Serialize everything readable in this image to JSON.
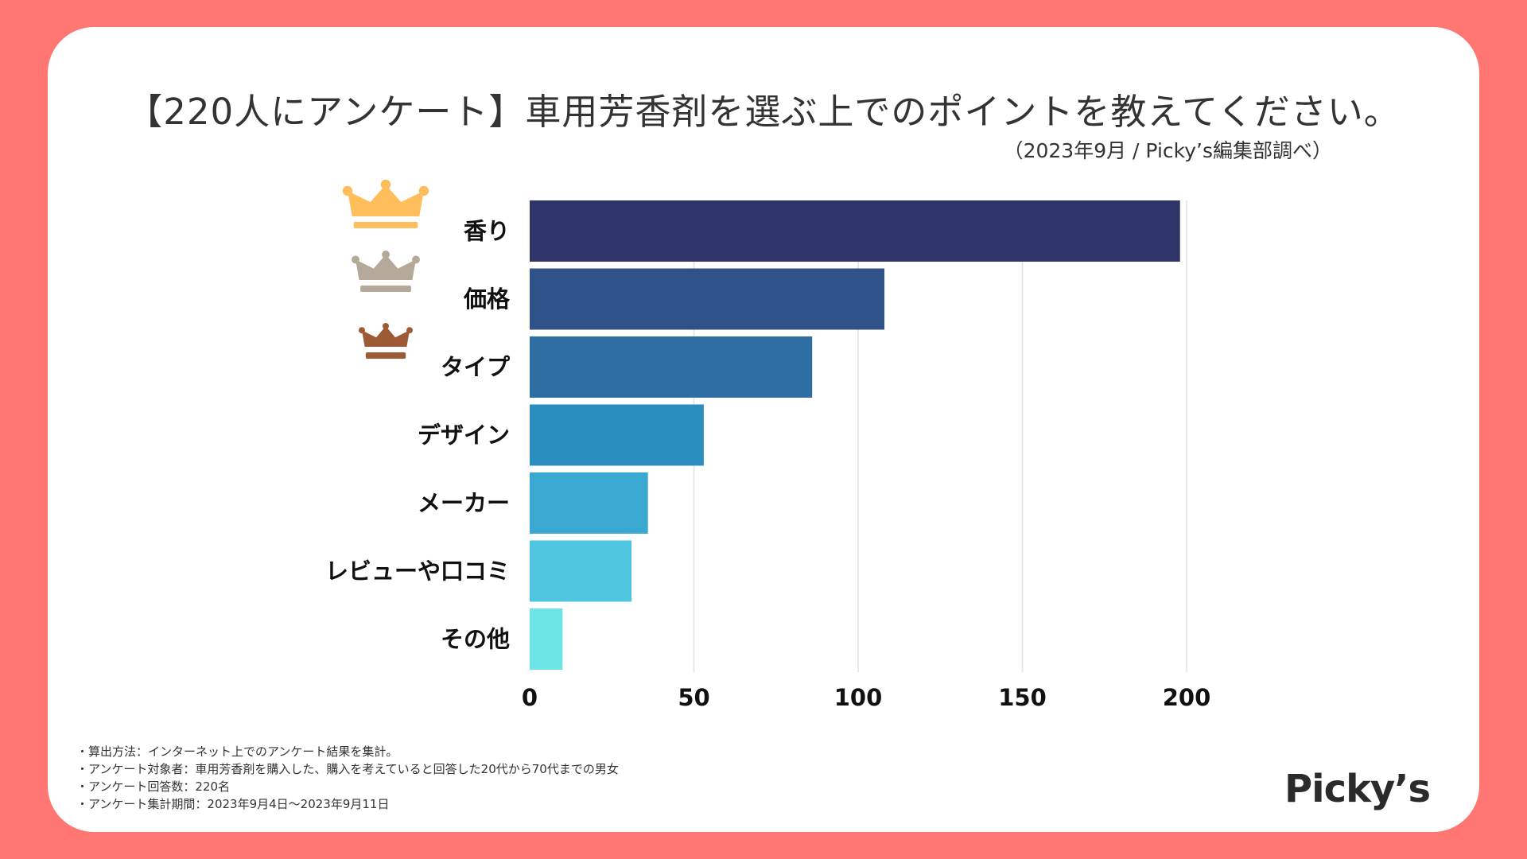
{
  "title": "【220人にアンケート】車用芳香剤を選ぶ上でのポイントを教えてください。",
  "subtitle": "（2023年9月 / Picky’s編集部調べ）",
  "chart_data": {
    "type": "bar",
    "orientation": "horizontal",
    "title": "【220人にアンケート】車用芳香剤を選ぶ上でのポイントを教えてください。",
    "categories": [
      "香り",
      "価格",
      "タイプ",
      "デザイン",
      "メーカー",
      "レビューや口コミ",
      "その他"
    ],
    "values": [
      198,
      108,
      86,
      53,
      36,
      31,
      10
    ],
    "colors": [
      "#2F3469",
      "#30528B",
      "#2F6EA3",
      "#2B8EBE",
      "#3AA9D2",
      "#4EC6DF",
      "#6CE4E6"
    ],
    "xlim": [
      0,
      200
    ],
    "xticks": [
      0,
      50,
      100,
      150,
      200
    ],
    "grid": true,
    "xlabel": "",
    "ylabel": "",
    "rank_badges": [
      {
        "rank": 1,
        "icon": "gold-crown-icon",
        "color": "#FFBE5C"
      },
      {
        "rank": 2,
        "icon": "silver-crown-icon",
        "color": "#B4A898"
      },
      {
        "rank": 3,
        "icon": "bronze-crown-icon",
        "color": "#9C5A35"
      }
    ]
  },
  "notes": [
    "・算出方法：インターネット上でのアンケート結果を集計。",
    "・アンケート対象者：車用芳香剤を購入した、購入を考えていると回答した20代から70代までの男女",
    "・アンケート回答数：220名",
    "・アンケート集計期間：2023年9月4日〜2023年9月11日"
  ],
  "logo": "Picky’s"
}
